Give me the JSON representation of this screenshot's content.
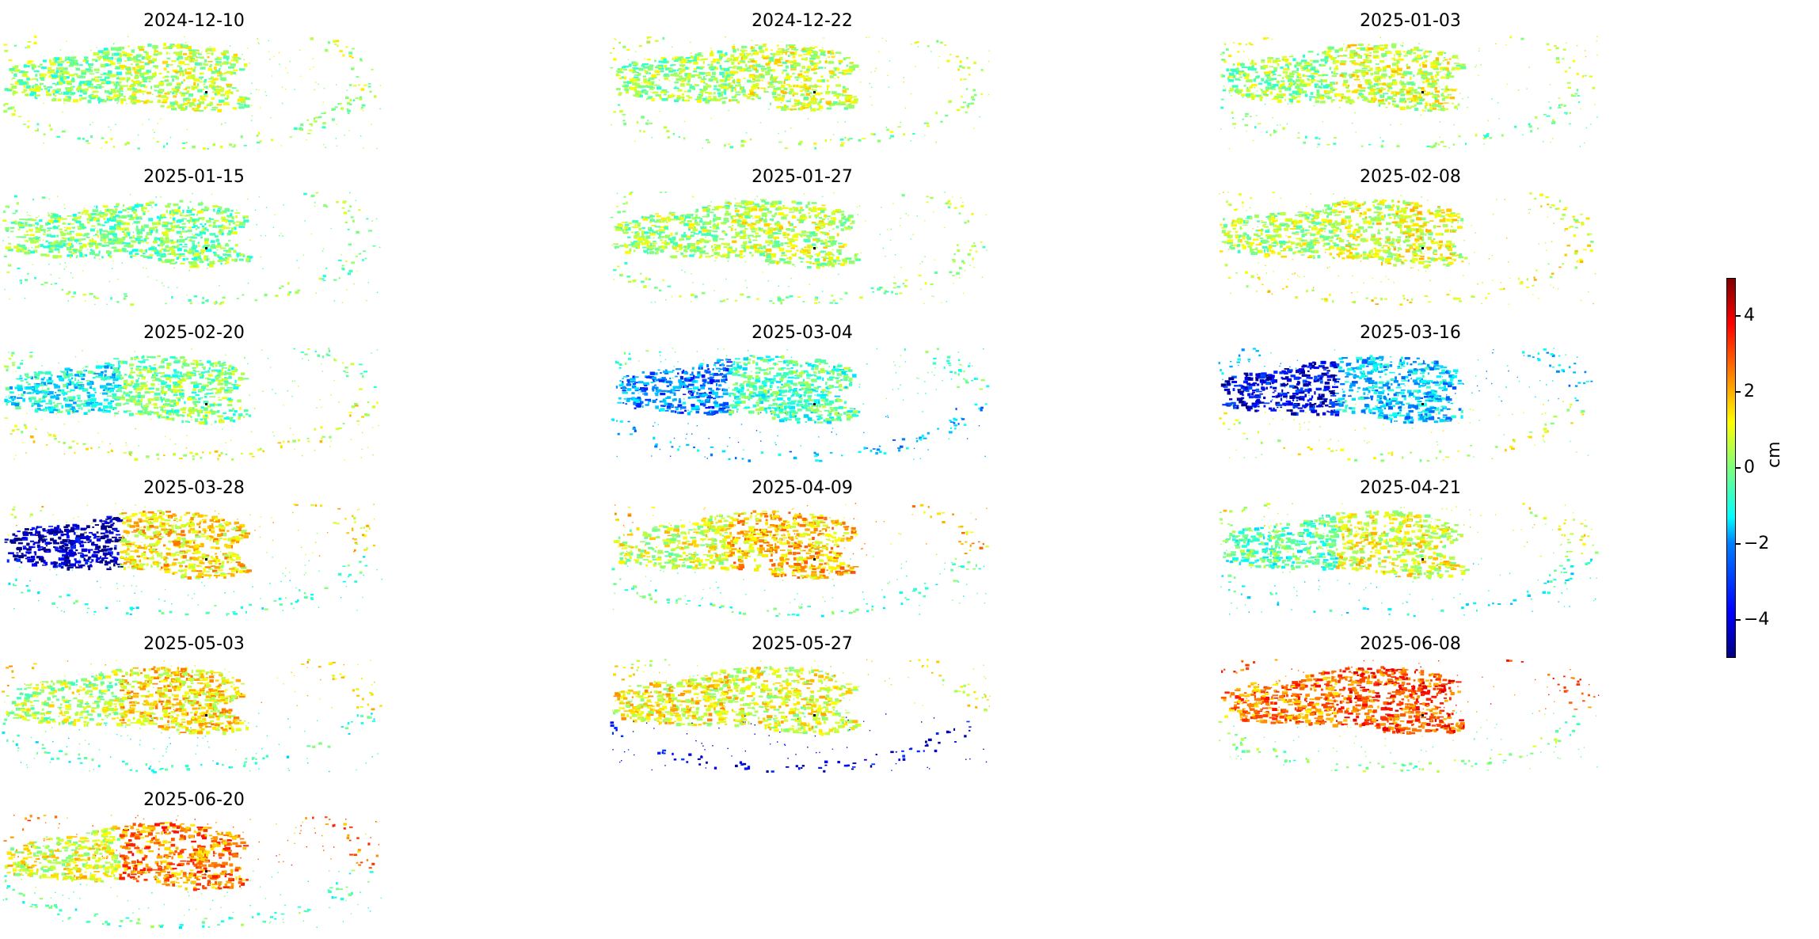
{
  "chart_data": {
    "type": "heatmap",
    "title": "",
    "panels": [
      {
        "date": "2024-12-10",
        "tint": [
          0.1,
          0.6,
          0.2
        ]
      },
      {
        "date": "2024-12-22",
        "tint": [
          0.2,
          0.7,
          0.3
        ]
      },
      {
        "date": "2025-01-03",
        "tint": [
          0.3,
          0.8,
          0.0
        ]
      },
      {
        "date": "2025-01-15",
        "tint": [
          0.0,
          0.0,
          0.0
        ]
      },
      {
        "date": "2025-01-27",
        "tint": [
          0.3,
          0.6,
          0.2
        ]
      },
      {
        "date": "2025-02-08",
        "tint": [
          0.5,
          0.9,
          1.2
        ]
      },
      {
        "date": "2025-02-20",
        "tint": [
          -1.2,
          0.0,
          1.0
        ]
      },
      {
        "date": "2025-03-04",
        "tint": [
          -2.5,
          -0.5,
          -2.0
        ]
      },
      {
        "date": "2025-03-16",
        "tint": [
          -4.0,
          -1.8,
          0.8
        ]
      },
      {
        "date": "2025-03-28",
        "tint": [
          -4.5,
          1.5,
          -0.8
        ]
      },
      {
        "date": "2025-04-09",
        "tint": [
          0.8,
          1.8,
          -0.5
        ]
      },
      {
        "date": "2025-04-21",
        "tint": [
          -0.5,
          1.0,
          -1.0
        ]
      },
      {
        "date": "2025-05-03",
        "tint": [
          0.5,
          1.5,
          -0.8
        ]
      },
      {
        "date": "2025-05-27",
        "tint": [
          1.2,
          1.0,
          -4.0
        ]
      },
      {
        "date": "2025-06-08",
        "tint": [
          2.5,
          3.0,
          0.0
        ]
      },
      {
        "date": "2025-06-20",
        "tint": [
          1.0,
          2.5,
          -0.5
        ]
      }
    ],
    "colorbar": {
      "label": "cm",
      "range": [
        -5,
        5
      ],
      "ticks": [
        "4",
        "2",
        "0",
        "−2",
        "−4"
      ],
      "tick_values": [
        4,
        2,
        0,
        -2,
        -4
      ],
      "colormap": "jet"
    },
    "grid": false,
    "legend": "none"
  }
}
